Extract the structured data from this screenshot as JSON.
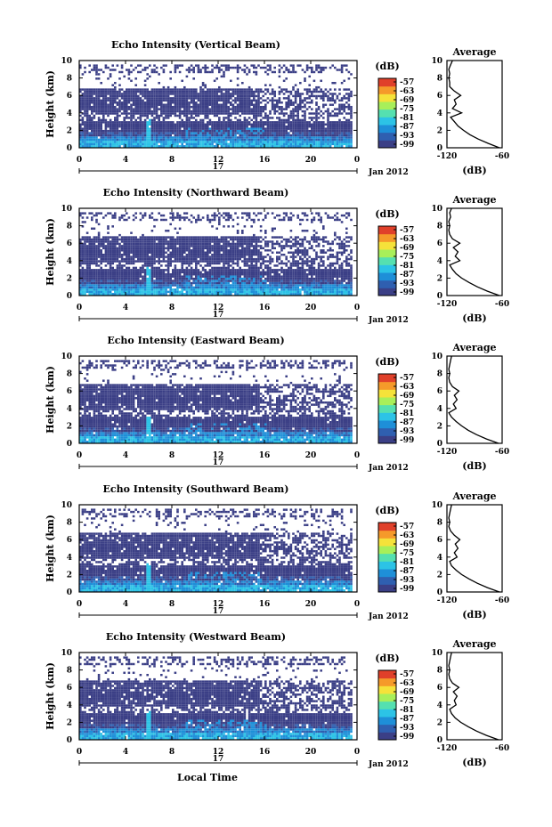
{
  "colors": {
    "background_fill": "#3b3f86",
    "gap_fill": "#ffffff",
    "colormap": [
      "#3b3f86",
      "#2f5fb0",
      "#1e8fd8",
      "#2cc3e6",
      "#55e0b0",
      "#a8ef5a",
      "#f5e23a",
      "#f59a2a",
      "#e0402a"
    ]
  },
  "shared": {
    "xlabel": "Local Time",
    "x_ticks": [
      "0",
      "4",
      "8",
      "12",
      "16",
      "20",
      "0"
    ],
    "day_label": "17",
    "month_label": "Jan 2012",
    "ylabel": "Height (km)",
    "y_ticks": [
      "0",
      "2",
      "4",
      "6",
      "8",
      "10"
    ],
    "colorbar_unit": "(dB)",
    "colorbar_ticks": [
      "-57",
      "-63",
      "-69",
      "-75",
      "-81",
      "-87",
      "-93",
      "-99"
    ],
    "avg_title": "Average",
    "avg_x_ticks": [
      "-120",
      "-60"
    ],
    "avg_xlabel": "(dB)",
    "avg_y_ticks": [
      "0",
      "2",
      "4",
      "6",
      "8",
      "10"
    ]
  },
  "chart_data": [
    {
      "type": "heatmap",
      "title": "Echo Intensity (Vertical Beam)",
      "xlabel": "Local Time",
      "ylabel": "Height (km)",
      "xlim": [
        0,
        24
      ],
      "ylim": [
        0,
        10
      ],
      "zlim": [
        -99,
        -57
      ],
      "average_profile": {
        "x_label": "(dB)",
        "xlim": [
          -120,
          -60
        ],
        "height_km": [
          0,
          0.5,
          1,
          1.5,
          2,
          2.5,
          3,
          3.5,
          4,
          4.5,
          5,
          5.5,
          6,
          6.5,
          7,
          7.5,
          8,
          8.5,
          9,
          9.5,
          10
        ],
        "db": [
          -63,
          -75,
          -86,
          -95,
          -102,
          -108,
          -112,
          -116,
          -104,
          -114,
          -110,
          -112,
          -105,
          -112,
          -117,
          -117,
          -118,
          -117,
          -118,
          -116,
          -114
        ]
      }
    },
    {
      "type": "heatmap",
      "title": "Echo Intensity (Northward Beam)",
      "xlabel": "Local Time",
      "ylabel": "Height (km)",
      "xlim": [
        0,
        24
      ],
      "ylim": [
        0,
        10
      ],
      "zlim": [
        -99,
        -57
      ],
      "average_profile": {
        "x_label": "(dB)",
        "xlim": [
          -120,
          -60
        ],
        "height_km": [
          0,
          0.5,
          1,
          1.5,
          2,
          2.5,
          3,
          3.5,
          4,
          4.5,
          5,
          5.5,
          6,
          6.5,
          7,
          7.5,
          8,
          8.5,
          9,
          9.5,
          10
        ],
        "db": [
          -63,
          -76,
          -87,
          -96,
          -104,
          -110,
          -114,
          -117,
          -106,
          -111,
          -108,
          -113,
          -106,
          -114,
          -117,
          -118,
          -117,
          -118,
          -116,
          -117,
          -115
        ]
      }
    },
    {
      "type": "heatmap",
      "title": "Echo Intensity (Eastward Beam)",
      "xlabel": "Local Time",
      "ylabel": "Height (km)",
      "xlim": [
        0,
        24
      ],
      "ylim": [
        0,
        10
      ],
      "zlim": [
        -99,
        -57
      ],
      "average_profile": {
        "x_label": "(dB)",
        "xlim": [
          -120,
          -60
        ],
        "height_km": [
          0,
          0.5,
          1,
          1.5,
          2,
          2.5,
          3,
          3.5,
          4,
          4.5,
          5,
          5.5,
          6,
          6.5,
          7,
          7.5,
          8,
          8.5,
          9,
          9.5,
          10
        ],
        "db": [
          -64,
          -77,
          -88,
          -97,
          -104,
          -110,
          -115,
          -118,
          -110,
          -113,
          -109,
          -112,
          -107,
          -114,
          -117,
          -118,
          -117,
          -118,
          -117,
          -116,
          -115
        ]
      }
    },
    {
      "type": "heatmap",
      "title": "Echo Intensity (Southward Beam)",
      "xlabel": "Local Time",
      "ylabel": "Height (km)",
      "xlim": [
        0,
        24
      ],
      "ylim": [
        0,
        10
      ],
      "zlim": [
        -99,
        -57
      ],
      "average_profile": {
        "x_label": "(dB)",
        "xlim": [
          -120,
          -60
        ],
        "height_km": [
          0,
          0.5,
          1,
          1.5,
          2,
          2.5,
          3,
          3.5,
          4,
          4.5,
          5,
          5.5,
          6,
          6.5,
          7,
          7.5,
          8,
          8.5,
          9,
          9.5,
          10
        ],
        "db": [
          -63,
          -76,
          -87,
          -96,
          -104,
          -110,
          -115,
          -117,
          -109,
          -112,
          -108,
          -111,
          -106,
          -112,
          -116,
          -118,
          -117,
          -118,
          -117,
          -116,
          -115
        ]
      }
    },
    {
      "type": "heatmap",
      "title": "Echo Intensity (Westward Beam)",
      "xlabel": "Local Time",
      "ylabel": "Height (km)",
      "xlim": [
        0,
        24
      ],
      "ylim": [
        0,
        10
      ],
      "zlim": [
        -99,
        -57
      ],
      "average_profile": {
        "x_label": "(dB)",
        "xlim": [
          -120,
          -60
        ],
        "height_km": [
          0,
          0.5,
          1,
          1.5,
          2,
          2.5,
          3,
          3.5,
          4,
          4.5,
          5,
          5.5,
          6,
          6.5,
          7,
          7.5,
          8,
          8.5,
          9,
          9.5,
          10
        ],
        "db": [
          -64,
          -77,
          -88,
          -97,
          -105,
          -111,
          -115,
          -117,
          -110,
          -112,
          -109,
          -113,
          -107,
          -114,
          -117,
          -118,
          -117,
          -118,
          -117,
          -116,
          -115
        ]
      }
    }
  ]
}
